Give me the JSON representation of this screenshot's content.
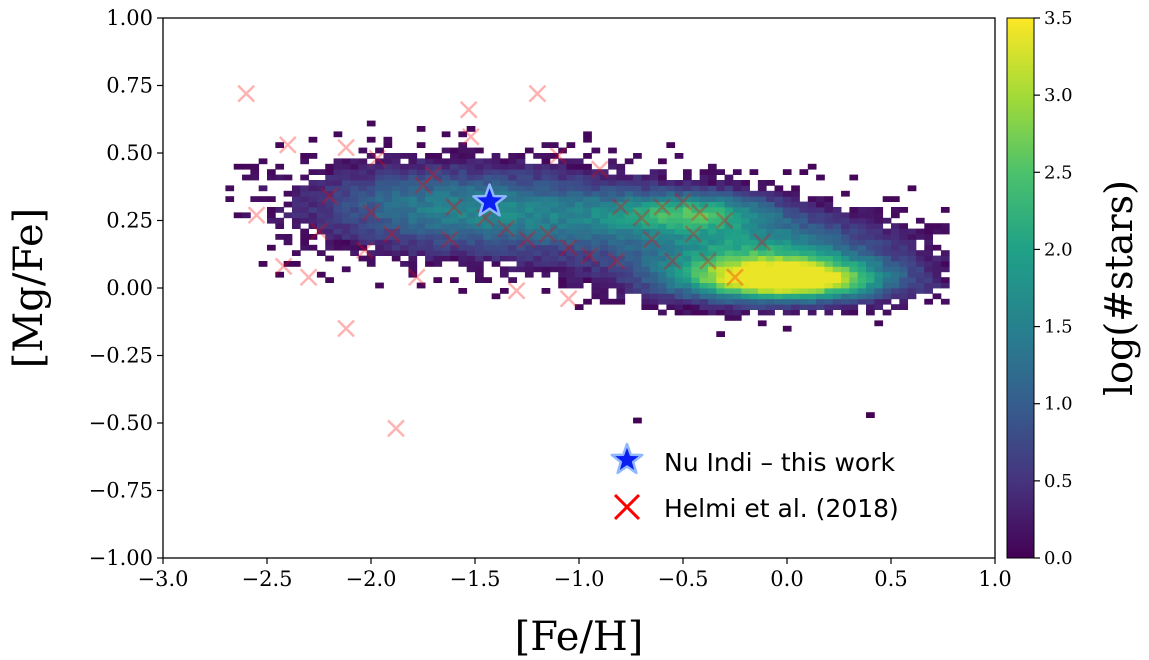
{
  "chart_data": {
    "type": "heatmap",
    "title": "",
    "xlabel": "[Fe/H]",
    "ylabel": "[Mg/Fe]",
    "xlim": [
      -3.0,
      1.0
    ],
    "ylim": [
      -1.0,
      1.0
    ],
    "x_ticks": [
      "−3.0",
      "−2.5",
      "−2.0",
      "−1.5",
      "−1.0",
      "−0.5",
      "0.0",
      "0.5",
      "1.0"
    ],
    "x_tick_values": [
      -3.0,
      -2.5,
      -2.0,
      -1.5,
      -1.0,
      -0.5,
      0.0,
      0.5,
      1.0
    ],
    "y_ticks": [
      "1.00",
      "0.75",
      "0.50",
      "0.25",
      "0.00",
      "−0.25",
      "−0.50",
      "−0.75",
      "−1.00"
    ],
    "y_tick_values": [
      1.0,
      0.75,
      0.5,
      0.25,
      0.0,
      -0.25,
      -0.5,
      -0.75,
      -1.0
    ],
    "colorbar": {
      "label": "log(#stars)",
      "range": [
        0.0,
        3.5
      ],
      "ticks": [
        "0.0",
        "0.5",
        "1.0",
        "1.5",
        "2.0",
        "2.5",
        "3.0",
        "3.5"
      ],
      "tick_values": [
        0.0,
        0.5,
        1.0,
        1.5,
        2.0,
        2.5,
        3.0,
        3.5
      ],
      "colormap": "viridis"
    },
    "density_components": [
      {
        "fe_h": 0.0,
        "mg_fe": 0.03,
        "sx": 0.32,
        "sy": 0.05,
        "weight": 3.4
      },
      {
        "fe_h": -0.15,
        "mg_fe": 0.12,
        "sx": 0.42,
        "sy": 0.09,
        "weight": 2.0
      },
      {
        "fe_h": -0.45,
        "mg_fe": 0.28,
        "sx": 0.28,
        "sy": 0.05,
        "weight": 1.8
      },
      {
        "fe_h": -1.2,
        "mg_fe": 0.27,
        "sx": 0.5,
        "sy": 0.1,
        "weight": 1.3
      },
      {
        "fe_h": -1.8,
        "mg_fe": 0.32,
        "sx": 0.4,
        "sy": 0.1,
        "weight": 0.8
      }
    ],
    "series": [
      {
        "name": "Nu Indi – this work",
        "marker": "star",
        "color": "#0b1ff2",
        "points": [
          [
            -1.43,
            0.32
          ]
        ]
      },
      {
        "name": "Helmi et al. (2018)",
        "marker": "x",
        "color": "#ff0000",
        "points": [
          [
            -2.6,
            0.72
          ],
          [
            -1.2,
            0.72
          ],
          [
            -1.53,
            0.66
          ],
          [
            -1.52,
            0.56
          ],
          [
            -2.12,
            0.52
          ],
          [
            -2.4,
            0.53
          ],
          [
            -1.97,
            0.48
          ],
          [
            -1.75,
            0.38
          ],
          [
            -2.55,
            0.27
          ],
          [
            -2.42,
            0.08
          ],
          [
            -2.3,
            0.04
          ],
          [
            -2.03,
            0.14
          ],
          [
            -1.88,
            -0.52
          ],
          [
            -2.12,
            -0.15
          ],
          [
            -1.6,
            0.3
          ],
          [
            -1.45,
            0.26
          ],
          [
            -1.35,
            0.22
          ],
          [
            -1.25,
            0.18
          ],
          [
            -1.15,
            0.2
          ],
          [
            -1.05,
            0.15
          ],
          [
            -0.95,
            0.12
          ],
          [
            -0.9,
            0.44
          ],
          [
            -1.3,
            -0.01
          ],
          [
            -1.05,
            -0.04
          ],
          [
            -1.78,
            0.04
          ],
          [
            -0.6,
            0.3
          ],
          [
            -0.5,
            0.32
          ],
          [
            -0.42,
            0.28
          ],
          [
            -0.3,
            0.25
          ],
          [
            -0.12,
            0.17
          ],
          [
            -0.25,
            0.04
          ],
          [
            -0.55,
            0.1
          ],
          [
            -0.7,
            0.26
          ],
          [
            -0.82,
            0.1
          ],
          [
            -1.62,
            0.18
          ],
          [
            -1.9,
            0.2
          ],
          [
            -2.2,
            0.34
          ],
          [
            -1.1,
            0.49
          ],
          [
            -2.0,
            0.28
          ],
          [
            -0.38,
            0.1
          ],
          [
            -0.65,
            0.18
          ],
          [
            -0.45,
            0.2
          ],
          [
            -1.7,
            0.42
          ],
          [
            -2.25,
            0.21
          ],
          [
            -0.8,
            0.3
          ]
        ]
      }
    ],
    "legend_position": "lower-right"
  }
}
